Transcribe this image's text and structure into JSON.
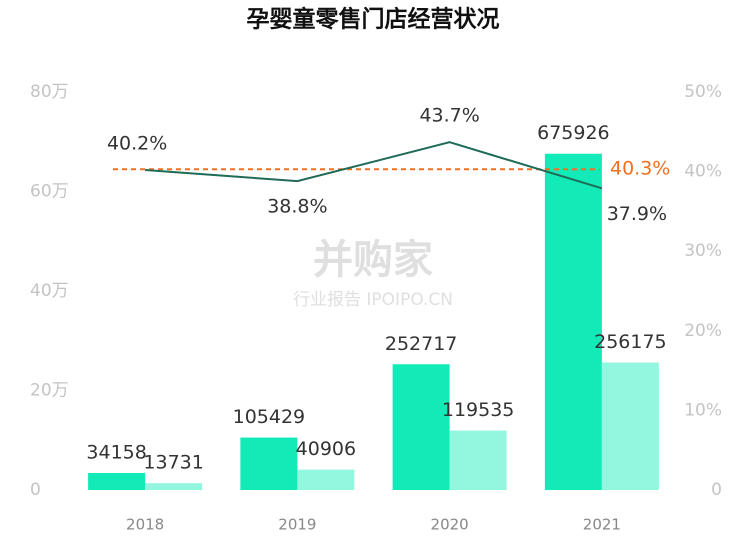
{
  "chart_data": {
    "type": "bar-line",
    "title": "孕婴童零售门店经营状况",
    "categories": [
      "2018",
      "2019",
      "2020",
      "2021"
    ],
    "series": [
      {
        "type": "bar",
        "color": "#12eab7",
        "values": [
          34158,
          105429,
          252717,
          675926
        ]
      },
      {
        "type": "bar",
        "color": "#93f7df",
        "values": [
          13731,
          40906,
          119535,
          256175
        ]
      },
      {
        "type": "line",
        "axis": "y2",
        "color": "#1f6b58",
        "values": [
          40.2,
          38.8,
          43.7,
          37.9
        ],
        "value_labels": [
          "40.2%",
          "38.8%",
          "43.7%",
          "37.9%"
        ]
      }
    ],
    "reference_line": {
      "axis": "y2",
      "value": 40.3,
      "label": "40.3%",
      "color": "#f0701e"
    },
    "ylim": [
      0,
      800000
    ],
    "yticks": [
      0,
      {
        "value": 200000,
        "label": "20万"
      },
      {
        "value": 400000,
        "label": "40万"
      },
      {
        "value": 600000,
        "label": "60万"
      },
      {
        "value": 800000,
        "label": "80万"
      }
    ],
    "y2lim": [
      0,
      50
    ],
    "y2ticks": [
      0,
      {
        "value": 10,
        "label": "10%"
      },
      {
        "value": 20,
        "label": "20%"
      },
      {
        "value": 30,
        "label": "30%"
      },
      {
        "value": 40,
        "label": "40%"
      },
      {
        "value": 50,
        "label": "50%"
      }
    ],
    "watermark": [
      "并购家",
      "行业报告 IPOIPO.CN"
    ]
  }
}
